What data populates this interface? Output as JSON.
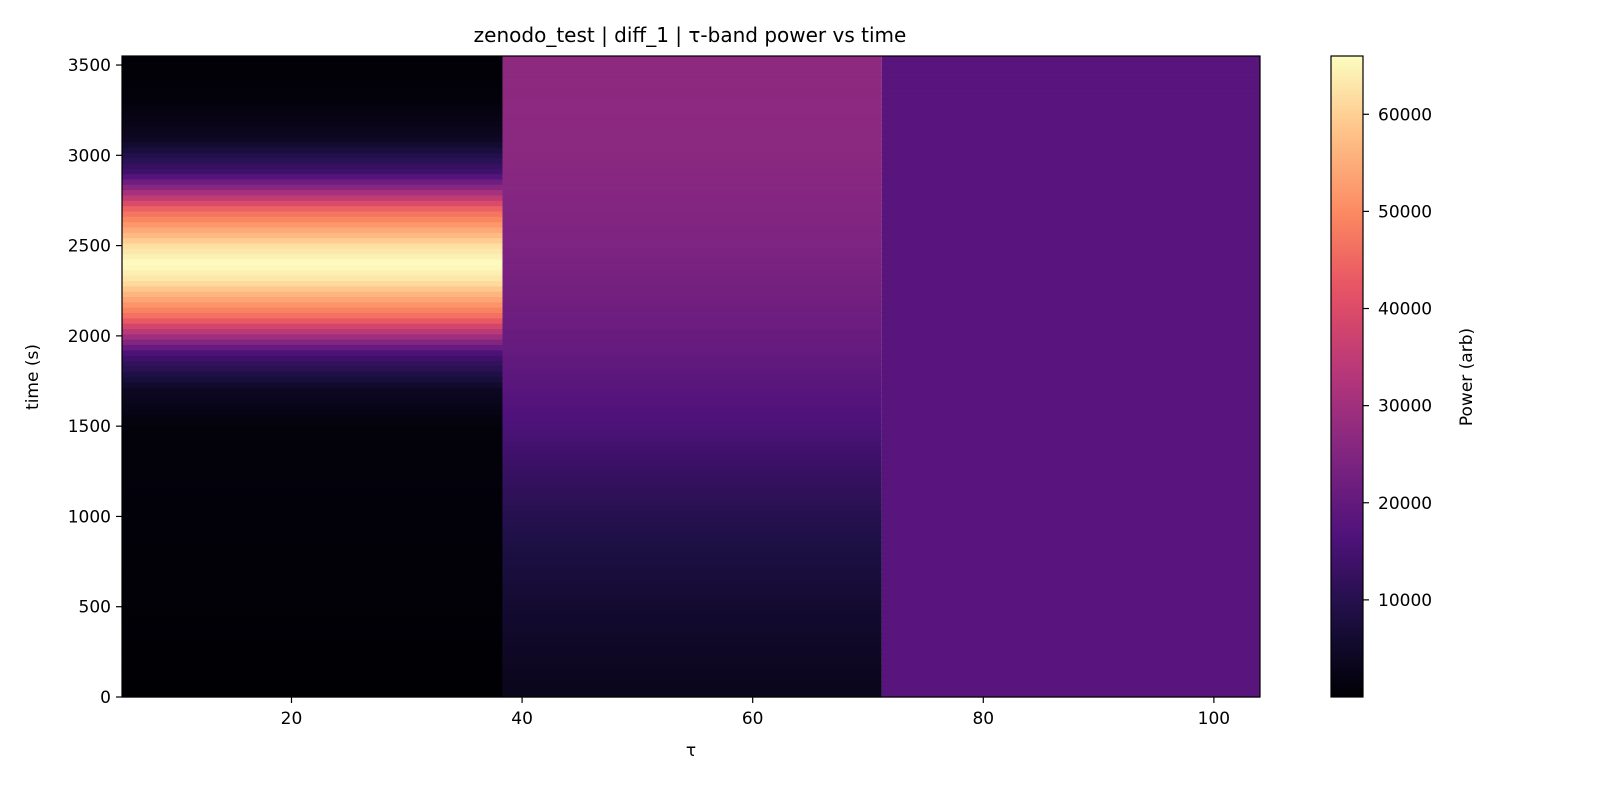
{
  "chart_data": {
    "type": "heatmap",
    "title": "zenodo_test | diff_1 | τ-band power vs time",
    "xlabel": "τ",
    "ylabel": "time (s)",
    "colorbar_label": "Power (arb)",
    "colormap": "magma",
    "xlim": [
      5.3,
      104
    ],
    "ylim": [
      0,
      3550
    ],
    "clim": [
      0,
      66000
    ],
    "xticks": [
      20,
      40,
      60,
      80,
      100
    ],
    "yticks": [
      0,
      500,
      1000,
      1500,
      2000,
      2500,
      3000,
      3500
    ],
    "cticks": [
      10000,
      20000,
      30000,
      40000,
      50000,
      60000
    ],
    "bands": [
      {
        "tau_range": [
          5.3,
          38.3
        ],
        "time": [
          0,
          1500,
          1700,
          1900,
          2100,
          2300,
          2400,
          2500,
          2700,
          2900,
          3100,
          3300,
          3550
        ],
        "power": [
          0,
          1000,
          4000,
          15000,
          45000,
          62000,
          66000,
          62000,
          45000,
          15000,
          4000,
          1000,
          300
        ]
      },
      {
        "tau_range": [
          38.3,
          71.2
        ],
        "time": [
          0,
          500,
          1000,
          1500,
          2000,
          2500,
          3000,
          3550
        ],
        "power": [
          3000,
          6000,
          10000,
          16000,
          21000,
          24500,
          26500,
          27000
        ]
      },
      {
        "tau_range": [
          71.2,
          104
        ],
        "time": [
          0,
          3550
        ],
        "power": [
          18000,
          18000
        ]
      }
    ]
  }
}
